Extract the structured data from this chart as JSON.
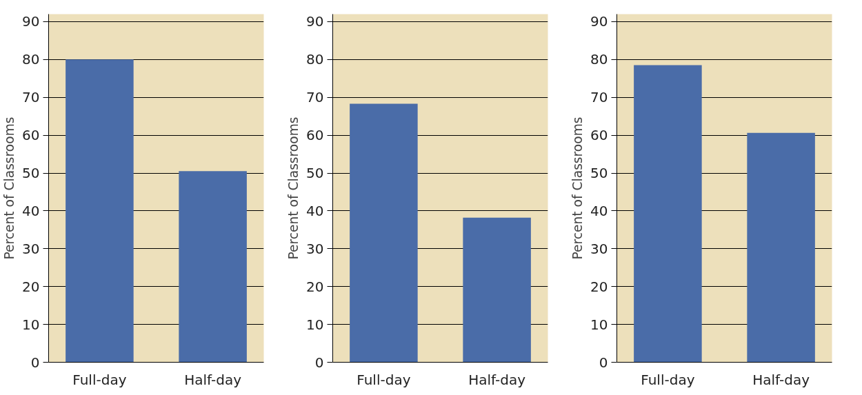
{
  "chart_data": [
    {
      "type": "bar",
      "ylabel": "Percent of Classrooms",
      "categories": [
        "Full-day",
        "Half-day"
      ],
      "values": [
        80,
        50.5
      ],
      "color": "#4a6ca8",
      "ylim": [
        0,
        92
      ],
      "yticks": [
        0,
        10,
        20,
        30,
        40,
        50,
        60,
        70,
        80,
        90
      ],
      "grid": "y"
    },
    {
      "type": "bar",
      "ylabel": "Percent of Classrooms",
      "categories": [
        "Full-day",
        "Half-day"
      ],
      "values": [
        68.3,
        38.2
      ],
      "color": "#4a6ca8",
      "ylim": [
        0,
        92
      ],
      "yticks": [
        0,
        10,
        20,
        30,
        40,
        50,
        60,
        70,
        80,
        90
      ],
      "grid": "y"
    },
    {
      "type": "bar",
      "ylabel": "Percent of Classrooms",
      "categories": [
        "Full-day",
        "Half-day"
      ],
      "values": [
        78.5,
        60.6
      ],
      "color": "#4a6ca8",
      "ylim": [
        0,
        92
      ],
      "yticks": [
        0,
        10,
        20,
        30,
        40,
        50,
        60,
        70,
        80,
        90
      ],
      "grid": "y"
    }
  ]
}
